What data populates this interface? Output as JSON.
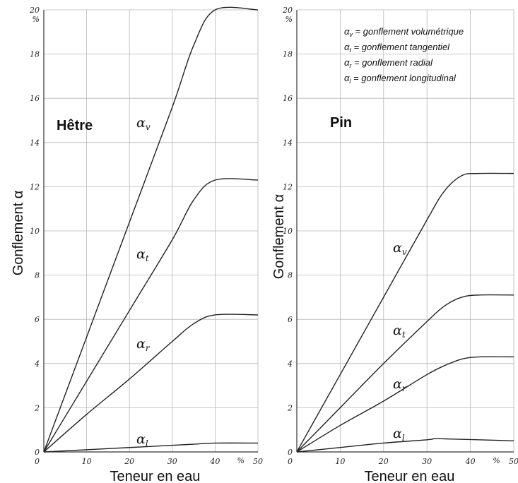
{
  "chart_data": [
    {
      "type": "line",
      "title": "Hêtre",
      "xlabel": "Teneur en eau",
      "ylabel": "Gonflement α",
      "x_unit": "%",
      "y_unit": "%",
      "xlim": [
        0,
        50
      ],
      "ylim": [
        0,
        20
      ],
      "xticks": [
        "0",
        "10",
        "20",
        "30",
        "40",
        "50"
      ],
      "yticks": [
        "0",
        "2",
        "4",
        "6",
        "8",
        "10",
        "12",
        "14",
        "16",
        "18",
        "20"
      ],
      "grid": true,
      "series": [
        {
          "name": "α",
          "sub": "v",
          "x": [
            0,
            10,
            20,
            30,
            35,
            40,
            50
          ],
          "y": [
            0,
            5.2,
            10.4,
            15.6,
            18.4,
            20,
            20
          ]
        },
        {
          "name": "α",
          "sub": "t",
          "x": [
            0,
            10,
            20,
            30,
            35,
            40,
            50
          ],
          "y": [
            0,
            3.2,
            6.4,
            9.6,
            11.4,
            12.3,
            12.3
          ]
        },
        {
          "name": "α",
          "sub": "r",
          "x": [
            0,
            10,
            20,
            30,
            35,
            40,
            50
          ],
          "y": [
            0,
            1.7,
            3.3,
            5.0,
            5.8,
            6.2,
            6.2
          ]
        },
        {
          "name": "α",
          "sub": "l",
          "x": [
            0,
            10,
            20,
            30,
            35,
            40,
            50
          ],
          "y": [
            0,
            0.1,
            0.2,
            0.3,
            0.35,
            0.4,
            0.4
          ]
        }
      ]
    },
    {
      "type": "line",
      "title": "Pin",
      "xlabel": "Teneur en eau",
      "ylabel": "Gonflement α",
      "x_unit": "%",
      "y_unit": "%",
      "xlim": [
        0,
        50
      ],
      "ylim": [
        0,
        20
      ],
      "xticks": [
        "0",
        "10",
        "20",
        "30",
        "40",
        "50"
      ],
      "yticks": [
        "0",
        "2",
        "4",
        "6",
        "8",
        "10",
        "12",
        "14",
        "16",
        "18",
        "20"
      ],
      "grid": true,
      "legend_position": "top-right",
      "legend": [
        {
          "sym": "α",
          "sub": "v",
          "text": " = gonflement volumétrique"
        },
        {
          "sym": "α",
          "sub": "t",
          "text": " = gonflement tangentiel"
        },
        {
          "sym": "α",
          "sub": "r",
          "text": " = gonflement radial"
        },
        {
          "sym": "α",
          "sub": "l",
          "text": " = gonflement longitudinal"
        }
      ],
      "series": [
        {
          "name": "α",
          "sub": "v",
          "x": [
            0,
            10,
            20,
            30,
            34,
            38,
            42,
            50
          ],
          "y": [
            0,
            3.5,
            7.0,
            10.5,
            11.8,
            12.5,
            12.6,
            12.6
          ]
        },
        {
          "name": "α",
          "sub": "t",
          "x": [
            0,
            10,
            20,
            30,
            34,
            38,
            42,
            50
          ],
          "y": [
            0,
            2.0,
            4.0,
            5.9,
            6.6,
            7.0,
            7.1,
            7.1
          ]
        },
        {
          "name": "α",
          "sub": "r",
          "x": [
            0,
            10,
            20,
            30,
            34,
            38,
            42,
            50
          ],
          "y": [
            0,
            1.2,
            2.3,
            3.5,
            3.9,
            4.2,
            4.3,
            4.3
          ]
        },
        {
          "name": "α",
          "sub": "l",
          "x": [
            0,
            10,
            20,
            30,
            32,
            36,
            42,
            50
          ],
          "y": [
            0,
            0.2,
            0.4,
            0.55,
            0.6,
            0.58,
            0.55,
            0.5
          ]
        }
      ]
    }
  ]
}
